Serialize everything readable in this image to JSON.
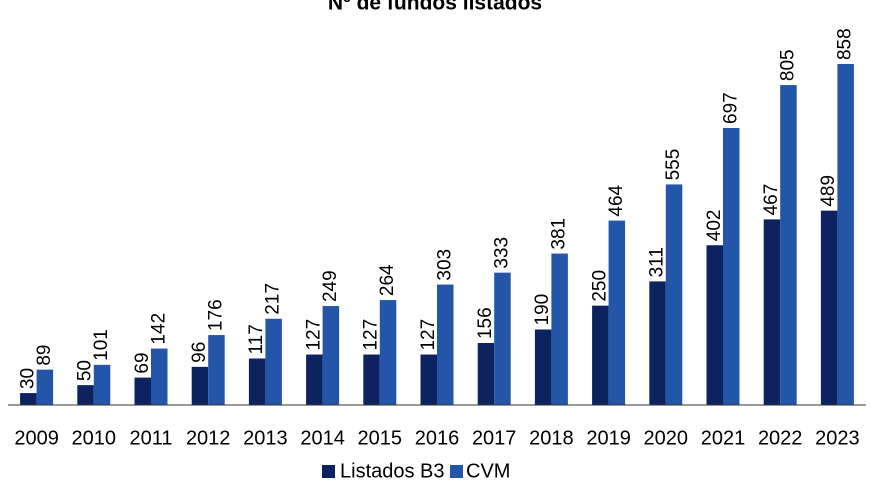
{
  "chart_data": {
    "type": "bar",
    "title": "Nº de fundos listados",
    "categories": [
      "2009",
      "2010",
      "2011",
      "2012",
      "2013",
      "2014",
      "2015",
      "2016",
      "2017",
      "2018",
      "2019",
      "2020",
      "2021",
      "2022",
      "2023"
    ],
    "series": [
      {
        "name": "Listados B3",
        "color": "#0d2360",
        "values": [
          30,
          50,
          69,
          96,
          117,
          127,
          127,
          127,
          156,
          190,
          250,
          311,
          402,
          467,
          489
        ]
      },
      {
        "name": "CVM",
        "color": "#2356a8",
        "values": [
          89,
          101,
          142,
          176,
          217,
          249,
          264,
          303,
          333,
          381,
          464,
          555,
          697,
          805,
          858
        ]
      }
    ],
    "legend": "bottom"
  }
}
